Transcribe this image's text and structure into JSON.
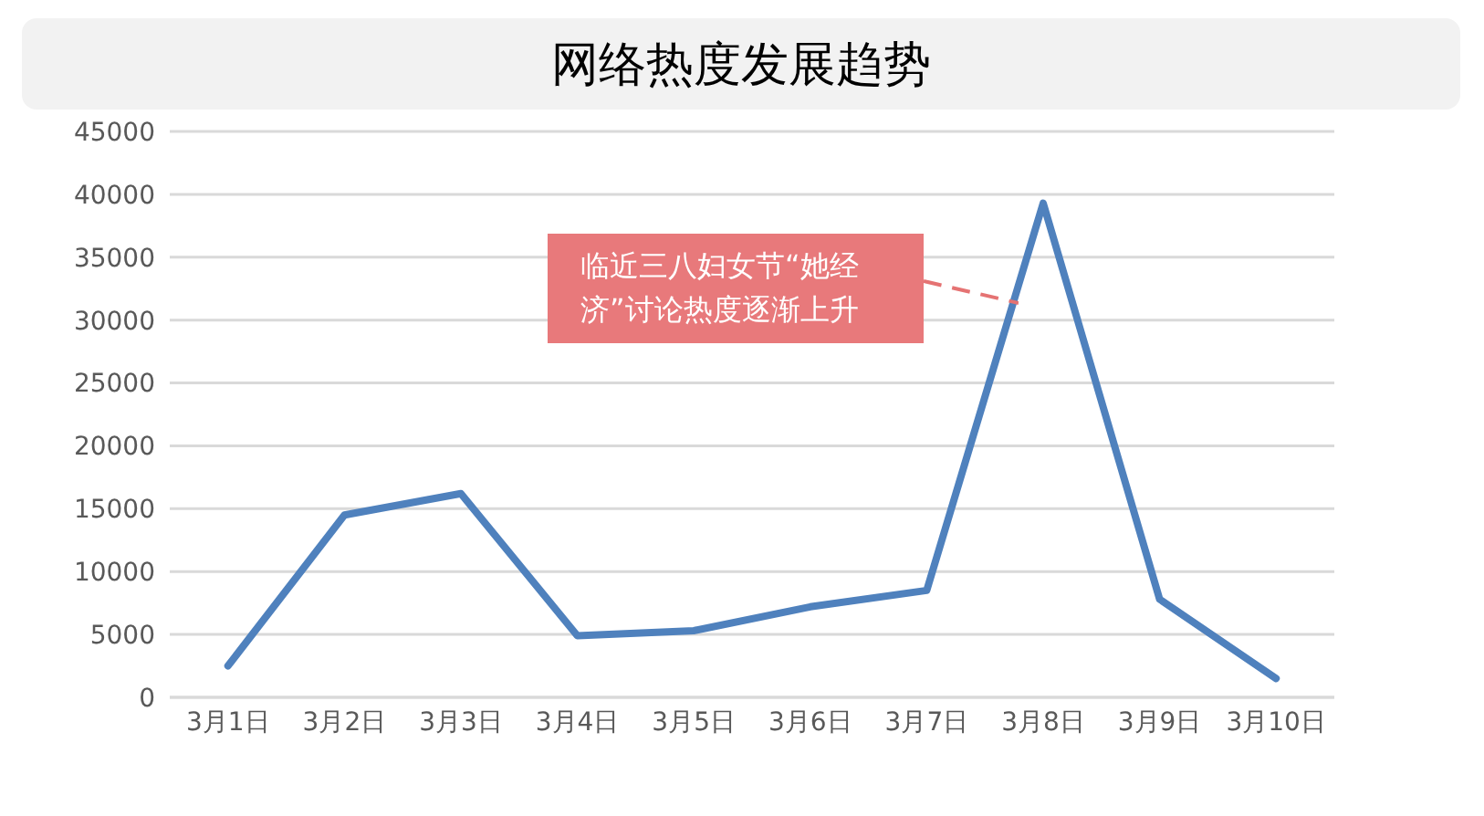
{
  "chart_data": {
    "type": "line",
    "title": "网络热度发展趋势",
    "categories": [
      "3月1日",
      "3月2日",
      "3月3日",
      "3月4日",
      "3月5日",
      "3月6日",
      "3月7日",
      "3月8日",
      "3月9日",
      "3月10日"
    ],
    "series": [
      {
        "color": "#4f81bd",
        "values": [
          2500,
          14500,
          16200,
          4900,
          5300,
          7200,
          8500,
          39300,
          7800,
          1500
        ]
      }
    ],
    "ylim": [
      0,
      45000
    ],
    "yticks": [
      0,
      5000,
      10000,
      15000,
      20000,
      25000,
      30000,
      35000,
      40000,
      45000
    ],
    "grid": "y",
    "legend": false,
    "marker": "none",
    "line_style": "solid",
    "annotations": [
      "临近三八妇女节“她经济”讨论热度逐渐上升"
    ]
  }
}
